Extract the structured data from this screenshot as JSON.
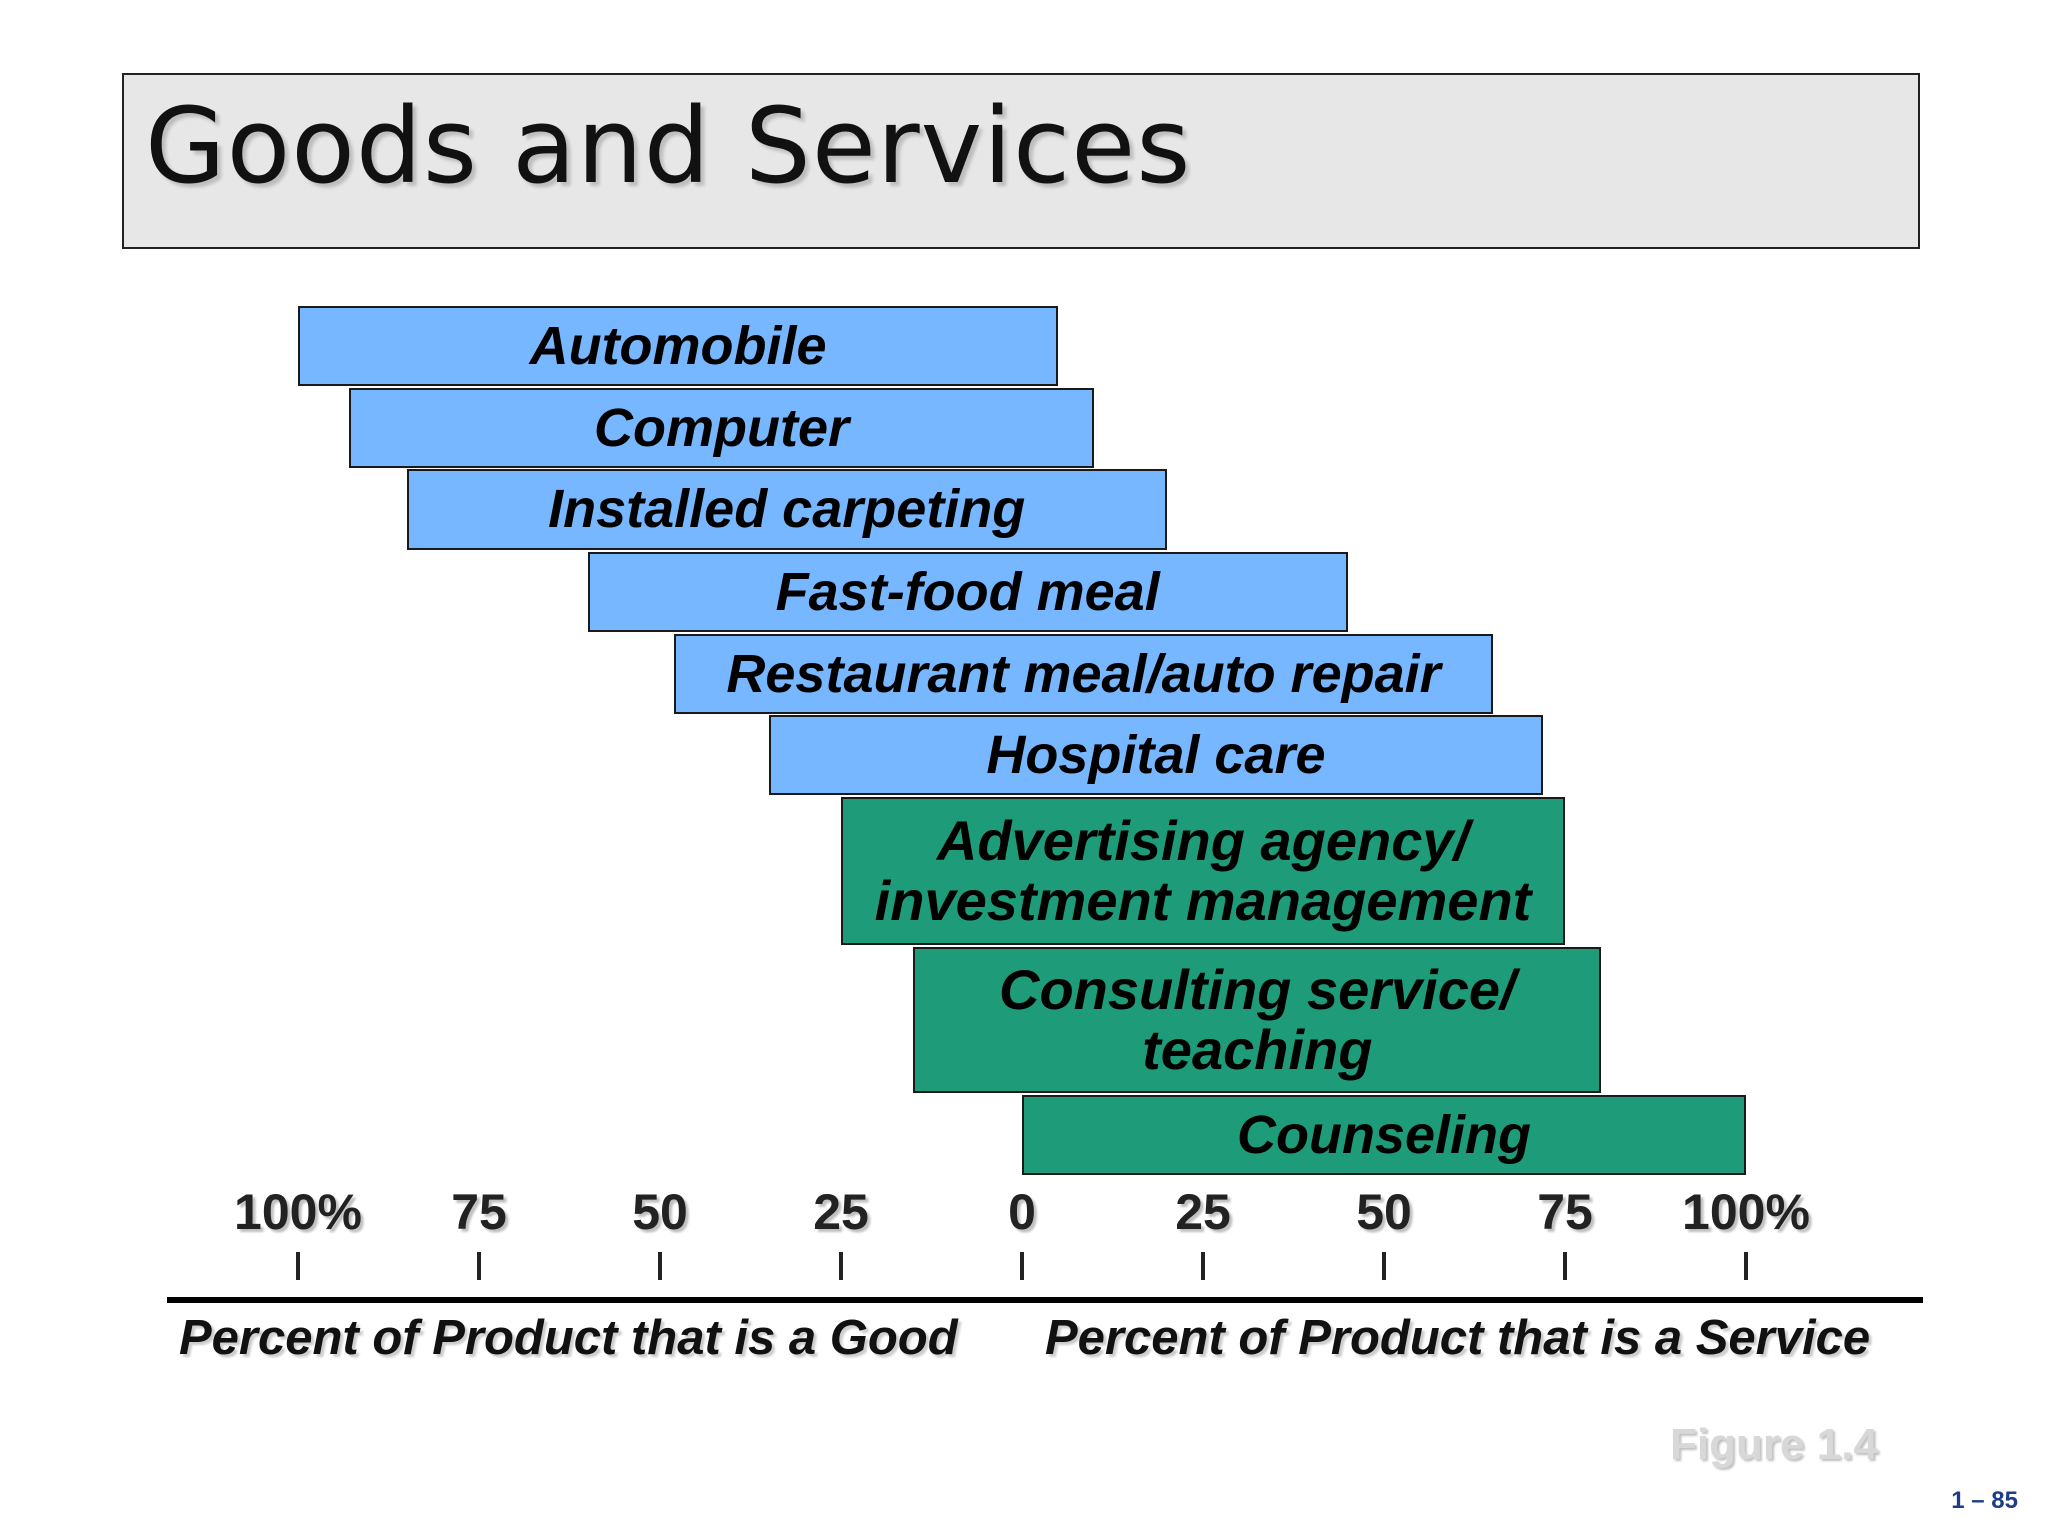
{
  "title": "Goods and Services",
  "chart_data": {
    "type": "bar",
    "categories": [
      "Automobile",
      "Computer",
      "Installed carpeting",
      "Fast-food meal",
      "Restaurant meal/auto repair",
      "Hospital care",
      "Advertising agency/\ninvestment management",
      "Consulting service/\nteaching",
      "Counseling"
    ],
    "goods_percent_start": [
      100,
      93,
      85,
      60,
      48,
      35,
      25,
      15,
      0
    ],
    "service_percent_end": [
      5,
      10,
      20,
      45,
      65,
      72,
      75,
      80,
      100
    ],
    "colors": {
      "mixed": "#77b7ff",
      "service": "#1e9b78"
    },
    "series_color_group": [
      "mixed",
      "mixed",
      "mixed",
      "mixed",
      "mixed",
      "mixed",
      "service",
      "service",
      "service"
    ],
    "x_ticks": [
      "100%",
      "75",
      "50",
      "25",
      "0",
      "25",
      "50",
      "75",
      "100%"
    ],
    "x_tick_values": [
      -100,
      -75,
      -50,
      -25,
      0,
      25,
      50,
      75,
      100
    ],
    "xlabel_left": "Percent of Product that is a Good",
    "xlabel_right": "Percent of Product that is a Service"
  },
  "figure_label": "Figure 1.4",
  "page_number": "1 – 85"
}
